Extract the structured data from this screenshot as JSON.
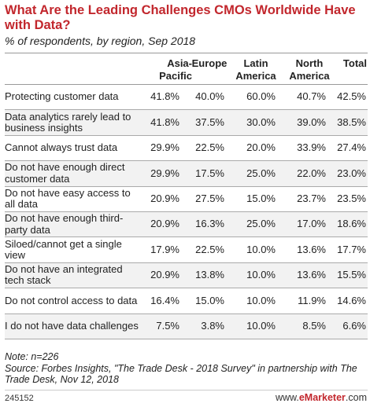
{
  "header": {
    "title": "What Are the Leading Challenges CMOs Worldwide Have with Data?",
    "subtitle": "% of respondents, by region, Sep 2018"
  },
  "columns": [
    {
      "line1": "Asia-",
      "line2": "Pacific"
    },
    {
      "line1": "Europe",
      "line2": ""
    },
    {
      "line1": "Latin",
      "line2": "America"
    },
    {
      "line1": "North",
      "line2": "America"
    },
    {
      "line1": "Total",
      "line2": ""
    }
  ],
  "rows": [
    {
      "label": "Protecting customer data",
      "vals": [
        "41.8%",
        "40.0%",
        "60.0%",
        "40.7%",
        "42.5%"
      ]
    },
    {
      "label": "Data analytics rarely lead to business insights",
      "vals": [
        "41.8%",
        "37.5%",
        "30.0%",
        "39.0%",
        "38.5%"
      ]
    },
    {
      "label": "Cannot always trust data",
      "vals": [
        "29.9%",
        "22.5%",
        "20.0%",
        "33.9%",
        "27.4%"
      ]
    },
    {
      "label": "Do not have enough direct customer data",
      "vals": [
        "29.9%",
        "17.5%",
        "25.0%",
        "22.0%",
        "23.0%"
      ]
    },
    {
      "label": "Do not have easy access to all data",
      "vals": [
        "20.9%",
        "27.5%",
        "15.0%",
        "23.7%",
        "23.5%"
      ]
    },
    {
      "label": "Do not have enough third-party data",
      "vals": [
        "20.9%",
        "16.3%",
        "25.0%",
        "17.0%",
        "18.6%"
      ]
    },
    {
      "label": "Siloed/cannot get a single view",
      "vals": [
        "17.9%",
        "22.5%",
        "10.0%",
        "13.6%",
        "17.7%"
      ]
    },
    {
      "label": "Do not have an integrated tech stack",
      "vals": [
        "20.9%",
        "13.8%",
        "10.0%",
        "13.6%",
        "15.5%"
      ]
    },
    {
      "label": "Do not control access to data",
      "vals": [
        "16.4%",
        "15.0%",
        "10.0%",
        "11.9%",
        "14.6%"
      ]
    },
    {
      "label": "I do not have data challenges",
      "vals": [
        "7.5%",
        "3.8%",
        "10.0%",
        "8.5%",
        "6.6%"
      ]
    }
  ],
  "footer": {
    "note": "Note: n=226",
    "source": "Source: Forbes Insights, \"The Trade Desk - 2018 Survey\" in partnership with The Trade Desk, Nov 12, 2018",
    "code": "245152",
    "brand_prefix": "www.",
    "brand_name": "eMarketer",
    "brand_suffix": ".com"
  },
  "colors": {
    "title": "#c2272d",
    "row_shade": "#f2f2f2"
  },
  "chart_data": {
    "type": "table",
    "title": "What Are the Leading Challenges CMOs Worldwide Have with Data?",
    "subtitle": "% of respondents, by region, Sep 2018",
    "columns": [
      "Asia-Pacific",
      "Europe",
      "Latin America",
      "North America",
      "Total"
    ],
    "categories": [
      "Protecting customer data",
      "Data analytics rarely lead to business insights",
      "Cannot always trust data",
      "Do not have enough direct customer data",
      "Do not have easy access to all data",
      "Do not have enough third-party data",
      "Siloed/cannot get a single view",
      "Do not have an integrated tech stack",
      "Do not control access to data",
      "I do not have data challenges"
    ],
    "series": [
      {
        "name": "Asia-Pacific",
        "values": [
          41.8,
          41.8,
          29.9,
          29.9,
          20.9,
          20.9,
          17.9,
          20.9,
          16.4,
          7.5
        ]
      },
      {
        "name": "Europe",
        "values": [
          40.0,
          37.5,
          22.5,
          17.5,
          27.5,
          16.3,
          22.5,
          13.8,
          15.0,
          3.8
        ]
      },
      {
        "name": "Latin America",
        "values": [
          60.0,
          30.0,
          20.0,
          25.0,
          15.0,
          25.0,
          10.0,
          10.0,
          10.0,
          10.0
        ]
      },
      {
        "name": "North America",
        "values": [
          40.7,
          39.0,
          33.9,
          22.0,
          23.7,
          17.0,
          13.6,
          13.6,
          11.9,
          8.5
        ]
      },
      {
        "name": "Total",
        "values": [
          42.5,
          38.5,
          27.4,
          23.0,
          23.5,
          18.6,
          17.7,
          15.5,
          14.6,
          6.6
        ]
      }
    ]
  }
}
